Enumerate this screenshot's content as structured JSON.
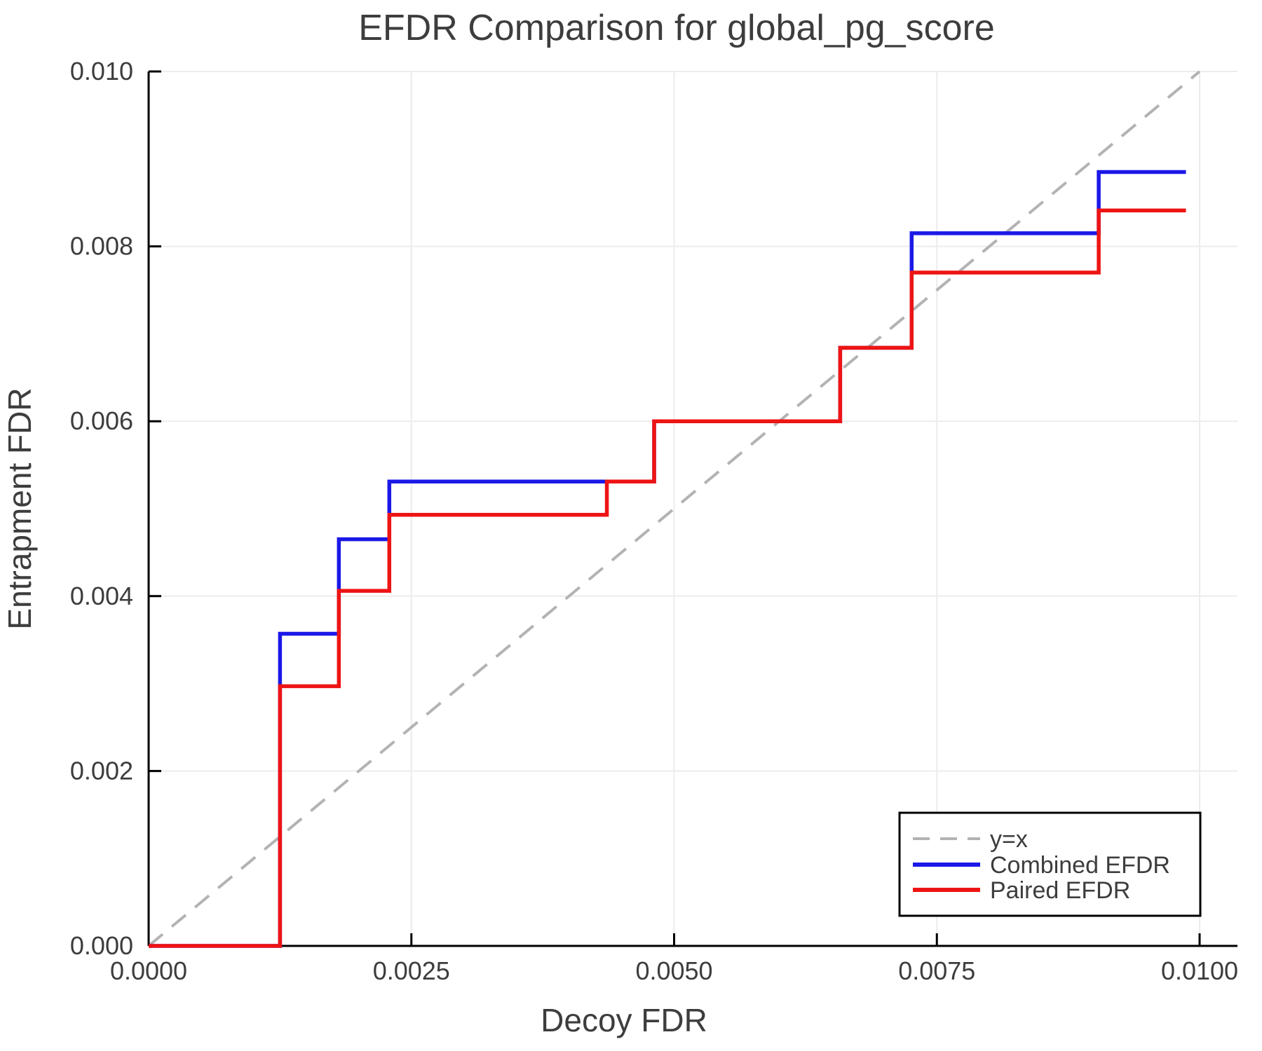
{
  "chart_data": {
    "type": "line",
    "subtype": "step",
    "title": "EFDR Comparison for global_pg_score",
    "xlabel": "Decoy FDR",
    "ylabel": "Entrapment FDR",
    "xlim": [
      0,
      0.01036
    ],
    "ylim": [
      0,
      0.01
    ],
    "grid": true,
    "x_ticks": [
      0.0,
      0.0025,
      0.005,
      0.0075,
      0.01
    ],
    "x_tick_labels": [
      "0.0000",
      "0.0025",
      "0.0050",
      "0.0075",
      "0.0100"
    ],
    "y_ticks": [
      0.0,
      0.002,
      0.004,
      0.006,
      0.008,
      0.01
    ],
    "y_tick_labels": [
      "0.000",
      "0.002",
      "0.004",
      "0.006",
      "0.008",
      "0.010"
    ],
    "reference_line": {
      "label": "y=x",
      "from": [
        0,
        0
      ],
      "to": [
        0.01,
        0.01
      ],
      "color": "#b3b3b3",
      "style": "dashed"
    },
    "series": [
      {
        "name": "Combined EFDR",
        "color": "#1b18e8",
        "x_end": 0.00987,
        "steps": [
          [
            0.0,
            0.0
          ],
          [
            0.00125,
            0.00357
          ],
          [
            0.00181,
            0.00465
          ],
          [
            0.00229,
            0.00531
          ],
          [
            0.00481,
            0.006
          ],
          [
            0.00658,
            0.00684
          ],
          [
            0.00726,
            0.00815
          ],
          [
            0.00904,
            0.00885
          ]
        ]
      },
      {
        "name": "Paired EFDR",
        "color": "#ee1414",
        "x_end": 0.00987,
        "steps": [
          [
            0.0,
            0.0
          ],
          [
            0.00125,
            0.00297
          ],
          [
            0.00181,
            0.00406
          ],
          [
            0.00229,
            0.00493
          ],
          [
            0.00436,
            0.00531
          ],
          [
            0.00481,
            0.006
          ],
          [
            0.00658,
            0.00684
          ],
          [
            0.00726,
            0.0077
          ],
          [
            0.00904,
            0.00841
          ]
        ]
      }
    ],
    "legend": {
      "position": "bottom-right",
      "entries": [
        {
          "label": "y=x",
          "color": "#b3b3b3",
          "style": "dashed"
        },
        {
          "label": "Combined EFDR",
          "color": "#1b18e8",
          "style": "solid"
        },
        {
          "label": "Paired EFDR",
          "color": "#ee1414",
          "style": "solid"
        }
      ]
    },
    "colors": {
      "grid": "#ececec",
      "axis": "#000000",
      "text": "#3d3d3d",
      "background": "#ffffff"
    }
  }
}
